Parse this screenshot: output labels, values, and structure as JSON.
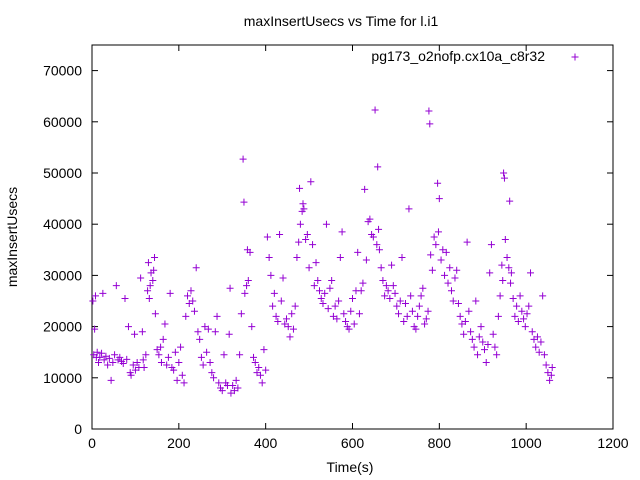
{
  "chart_data": {
    "type": "scatter",
    "title": "maxInsertUsecs vs Time for l.i1",
    "xlabel": "Time(s)",
    "ylabel": "maxInsertUsecs",
    "xlim": [
      0,
      1200
    ],
    "ylim": [
      0,
      75000
    ],
    "xticks": [
      0,
      200,
      400,
      600,
      800,
      1000,
      1200
    ],
    "yticks": [
      0,
      10000,
      20000,
      30000,
      40000,
      50000,
      60000,
      70000
    ],
    "grid": false,
    "legend_position": "top-right",
    "marker": "+",
    "series": [
      {
        "name": "pg173_o2nofp.cx10a_c8r32",
        "color": "#9400d3",
        "points": [
          [
            2,
            25000
          ],
          [
            4,
            14500
          ],
          [
            6,
            19500
          ],
          [
            8,
            26000
          ],
          [
            10,
            14000
          ],
          [
            12,
            15000
          ],
          [
            15,
            13000
          ],
          [
            18,
            14000
          ],
          [
            22,
            14800
          ],
          [
            25,
            26500
          ],
          [
            28,
            13500
          ],
          [
            32,
            14200
          ],
          [
            36,
            12500
          ],
          [
            40,
            13800
          ],
          [
            44,
            9500
          ],
          [
            48,
            13000
          ],
          [
            52,
            14500
          ],
          [
            56,
            28000
          ],
          [
            60,
            13500
          ],
          [
            64,
            14000
          ],
          [
            68,
            13200
          ],
          [
            72,
            12800
          ],
          [
            76,
            25500
          ],
          [
            80,
            13600
          ],
          [
            84,
            20000
          ],
          [
            88,
            11000
          ],
          [
            90,
            10500
          ],
          [
            95,
            12500
          ],
          [
            98,
            18500
          ],
          [
            100,
            11500
          ],
          [
            104,
            13000
          ],
          [
            108,
            12000
          ],
          [
            112,
            29500
          ],
          [
            116,
            19000
          ],
          [
            118,
            13500
          ],
          [
            120,
            12000
          ],
          [
            124,
            14500
          ],
          [
            128,
            27000
          ],
          [
            130,
            32500
          ],
          [
            132,
            25500
          ],
          [
            134,
            28000
          ],
          [
            136,
            30500
          ],
          [
            140,
            29000
          ],
          [
            142,
            31000
          ],
          [
            144,
            33500
          ],
          [
            146,
            22500
          ],
          [
            150,
            15500
          ],
          [
            154,
            14500
          ],
          [
            158,
            16000
          ],
          [
            160,
            13000
          ],
          [
            164,
            17500
          ],
          [
            168,
            20500
          ],
          [
            172,
            12500
          ],
          [
            176,
            14000
          ],
          [
            180,
            26500
          ],
          [
            184,
            12000
          ],
          [
            188,
            11500
          ],
          [
            192,
            15000
          ],
          [
            196,
            9500
          ],
          [
            200,
            13000
          ],
          [
            204,
            16000
          ],
          [
            208,
            10500
          ],
          [
            212,
            9000
          ],
          [
            216,
            22000
          ],
          [
            220,
            26000
          ],
          [
            224,
            24500
          ],
          [
            228,
            27000
          ],
          [
            232,
            25000
          ],
          [
            236,
            23000
          ],
          [
            240,
            31500
          ],
          [
            244,
            19000
          ],
          [
            248,
            17500
          ],
          [
            252,
            14000
          ],
          [
            256,
            12500
          ],
          [
            260,
            20000
          ],
          [
            264,
            15000
          ],
          [
            268,
            19500
          ],
          [
            272,
            13000
          ],
          [
            276,
            11000
          ],
          [
            280,
            10000
          ],
          [
            284,
            19000
          ],
          [
            288,
            22000
          ],
          [
            292,
            9000
          ],
          [
            296,
            8000
          ],
          [
            300,
            7500
          ],
          [
            304,
            14500
          ],
          [
            308,
            9000
          ],
          [
            312,
            8500
          ],
          [
            316,
            18500
          ],
          [
            318,
            27500
          ],
          [
            320,
            7000
          ],
          [
            324,
            8500
          ],
          [
            328,
            7500
          ],
          [
            332,
            9500
          ],
          [
            336,
            8000
          ],
          [
            340,
            14500
          ],
          [
            344,
            22500
          ],
          [
            348,
            52700
          ],
          [
            350,
            44300
          ],
          [
            352,
            26500
          ],
          [
            356,
            28000
          ],
          [
            358,
            35000
          ],
          [
            360,
            29000
          ],
          [
            364,
            34500
          ],
          [
            368,
            20000
          ],
          [
            372,
            14000
          ],
          [
            376,
            13000
          ],
          [
            380,
            11000
          ],
          [
            384,
            12000
          ],
          [
            388,
            10500
          ],
          [
            392,
            9000
          ],
          [
            396,
            15500
          ],
          [
            400,
            11500
          ],
          [
            404,
            37500
          ],
          [
            408,
            33500
          ],
          [
            412,
            30000
          ],
          [
            416,
            24000
          ],
          [
            420,
            26500
          ],
          [
            424,
            22000
          ],
          [
            428,
            21000
          ],
          [
            432,
            38000
          ],
          [
            436,
            25000
          ],
          [
            440,
            29500
          ],
          [
            444,
            20500
          ],
          [
            448,
            21500
          ],
          [
            452,
            20000
          ],
          [
            456,
            18000
          ],
          [
            460,
            22500
          ],
          [
            464,
            19500
          ],
          [
            468,
            24000
          ],
          [
            472,
            33500
          ],
          [
            476,
            36500
          ],
          [
            478,
            47000
          ],
          [
            480,
            40000
          ],
          [
            484,
            42500
          ],
          [
            486,
            44000
          ],
          [
            488,
            43000
          ],
          [
            492,
            37000
          ],
          [
            496,
            38000
          ],
          [
            500,
            31500
          ],
          [
            504,
            48300
          ],
          [
            508,
            36000
          ],
          [
            512,
            28000
          ],
          [
            516,
            32500
          ],
          [
            520,
            29000
          ],
          [
            524,
            27000
          ],
          [
            528,
            25500
          ],
          [
            532,
            24500
          ],
          [
            536,
            26500
          ],
          [
            540,
            40000
          ],
          [
            544,
            23500
          ],
          [
            548,
            27500
          ],
          [
            552,
            29000
          ],
          [
            556,
            22000
          ],
          [
            560,
            24000
          ],
          [
            564,
            21500
          ],
          [
            568,
            25000
          ],
          [
            572,
            33500
          ],
          [
            576,
            38500
          ],
          [
            580,
            22500
          ],
          [
            584,
            21000
          ],
          [
            588,
            20000
          ],
          [
            592,
            19500
          ],
          [
            596,
            23000
          ],
          [
            600,
            25500
          ],
          [
            604,
            20500
          ],
          [
            608,
            27000
          ],
          [
            612,
            34500
          ],
          [
            616,
            22500
          ],
          [
            620,
            27000
          ],
          [
            624,
            28500
          ],
          [
            628,
            46800
          ],
          [
            632,
            33000
          ],
          [
            636,
            40500
          ],
          [
            640,
            41000
          ],
          [
            644,
            38000
          ],
          [
            648,
            37500
          ],
          [
            652,
            62300
          ],
          [
            656,
            36000
          ],
          [
            658,
            51200
          ],
          [
            660,
            39000
          ],
          [
            662,
            35000
          ],
          [
            666,
            31500
          ],
          [
            670,
            29000
          ],
          [
            674,
            26000
          ],
          [
            678,
            28000
          ],
          [
            682,
            27000
          ],
          [
            686,
            25500
          ],
          [
            690,
            32000
          ],
          [
            694,
            28000
          ],
          [
            698,
            26500
          ],
          [
            702,
            24000
          ],
          [
            706,
            22500
          ],
          [
            710,
            25000
          ],
          [
            714,
            33500
          ],
          [
            718,
            21000
          ],
          [
            722,
            24500
          ],
          [
            726,
            22000
          ],
          [
            730,
            43000
          ],
          [
            734,
            26000
          ],
          [
            738,
            23000
          ],
          [
            742,
            20000
          ],
          [
            746,
            19500
          ],
          [
            750,
            22000
          ],
          [
            754,
            24000
          ],
          [
            758,
            26000
          ],
          [
            762,
            27500
          ],
          [
            766,
            20500
          ],
          [
            770,
            21500
          ],
          [
            774,
            23000
          ],
          [
            776,
            62100
          ],
          [
            778,
            59600
          ],
          [
            780,
            34000
          ],
          [
            784,
            31000
          ],
          [
            788,
            37500
          ],
          [
            792,
            36000
          ],
          [
            796,
            48000
          ],
          [
            798,
            38500
          ],
          [
            800,
            45000
          ],
          [
            804,
            33000
          ],
          [
            808,
            35000
          ],
          [
            812,
            30000
          ],
          [
            816,
            34500
          ],
          [
            820,
            28500
          ],
          [
            824,
            31500
          ],
          [
            828,
            27000
          ],
          [
            832,
            25000
          ],
          [
            836,
            29500
          ],
          [
            840,
            31000
          ],
          [
            844,
            24500
          ],
          [
            848,
            22000
          ],
          [
            852,
            20500
          ],
          [
            856,
            18500
          ],
          [
            860,
            21000
          ],
          [
            864,
            36500
          ],
          [
            868,
            23000
          ],
          [
            872,
            19000
          ],
          [
            876,
            17500
          ],
          [
            880,
            16000
          ],
          [
            884,
            25000
          ],
          [
            888,
            14500
          ],
          [
            892,
            18000
          ],
          [
            896,
            20000
          ],
          [
            900,
            17000
          ],
          [
            904,
            15500
          ],
          [
            908,
            13000
          ],
          [
            912,
            16500
          ],
          [
            916,
            30500
          ],
          [
            920,
            36000
          ],
          [
            924,
            18500
          ],
          [
            928,
            16000
          ],
          [
            932,
            14500
          ],
          [
            936,
            22000
          ],
          [
            940,
            26000
          ],
          [
            944,
            32000
          ],
          [
            946,
            29000
          ],
          [
            948,
            50000
          ],
          [
            950,
            49000
          ],
          [
            952,
            37000
          ],
          [
            956,
            33500
          ],
          [
            960,
            31500
          ],
          [
            962,
            44500
          ],
          [
            964,
            28500
          ],
          [
            966,
            30500
          ],
          [
            970,
            25500
          ],
          [
            974,
            22000
          ],
          [
            978,
            24000
          ],
          [
            982,
            21000
          ],
          [
            986,
            26000
          ],
          [
            990,
            23000
          ],
          [
            994,
            21500
          ],
          [
            998,
            20000
          ],
          [
            1002,
            22500
          ],
          [
            1006,
            24000
          ],
          [
            1010,
            30500
          ],
          [
            1014,
            19000
          ],
          [
            1018,
            17500
          ],
          [
            1022,
            16000
          ],
          [
            1026,
            18000
          ],
          [
            1030,
            15000
          ],
          [
            1034,
            17000
          ],
          [
            1038,
            26000
          ],
          [
            1042,
            14500
          ],
          [
            1046,
            12500
          ],
          [
            1050,
            11000
          ],
          [
            1054,
            9500
          ],
          [
            1058,
            10500
          ],
          [
            1060,
            12000
          ]
        ]
      }
    ]
  }
}
